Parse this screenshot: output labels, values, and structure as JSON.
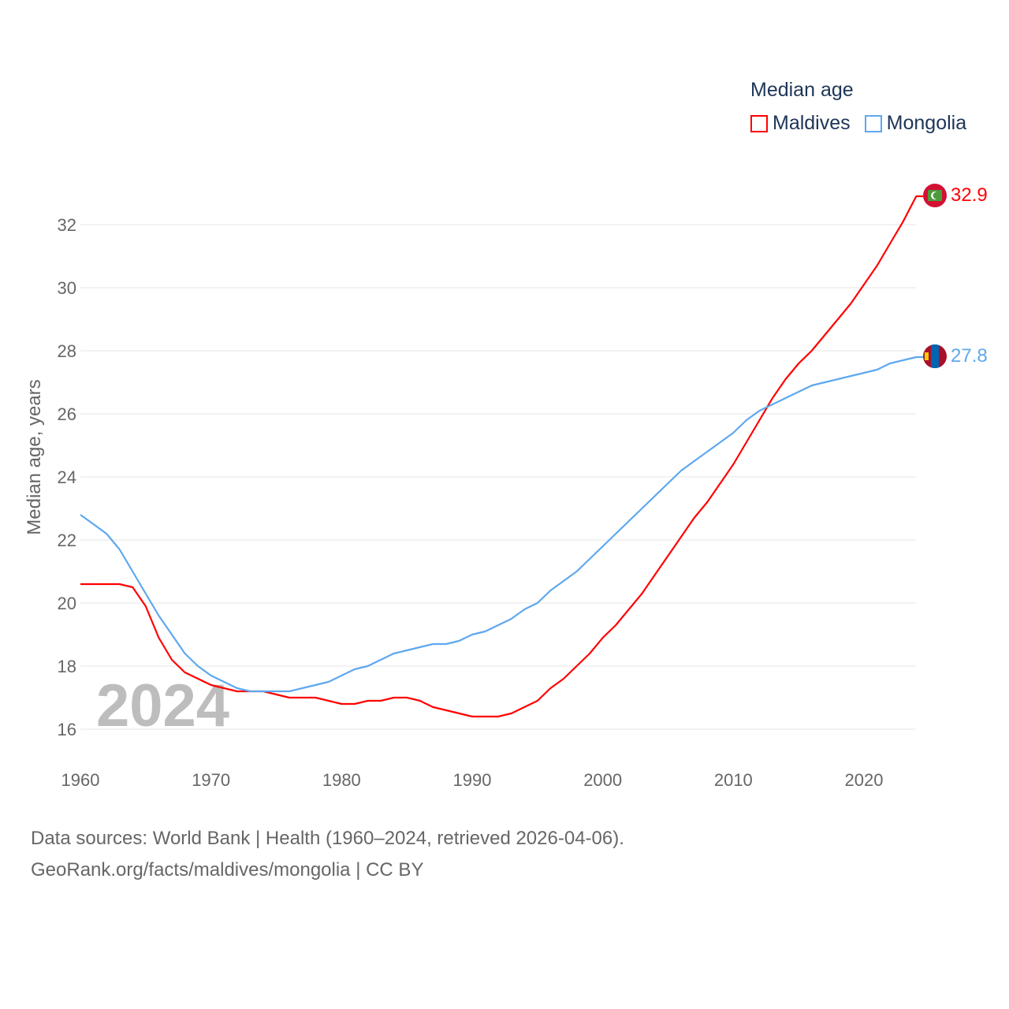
{
  "chart_data": {
    "type": "line",
    "title": "Median age",
    "ylabel": "Median age, years",
    "xlabel": "",
    "xlim": [
      1960,
      2024
    ],
    "ylim": [
      15,
      33.5
    ],
    "xticks": [
      1960,
      1970,
      1980,
      1990,
      2000,
      2010,
      2020
    ],
    "yticks": [
      16,
      18,
      20,
      22,
      24,
      26,
      28,
      30,
      32
    ],
    "grid": true,
    "legend_placement": "top-right",
    "year_watermark": "2024",
    "x": [
      1960,
      1961,
      1962,
      1963,
      1964,
      1965,
      1966,
      1967,
      1968,
      1969,
      1970,
      1971,
      1972,
      1973,
      1974,
      1975,
      1976,
      1977,
      1978,
      1979,
      1980,
      1981,
      1982,
      1983,
      1984,
      1985,
      1986,
      1987,
      1988,
      1989,
      1990,
      1991,
      1992,
      1993,
      1994,
      1995,
      1996,
      1997,
      1998,
      1999,
      2000,
      2001,
      2002,
      2003,
      2004,
      2005,
      2006,
      2007,
      2008,
      2009,
      2010,
      2011,
      2012,
      2013,
      2014,
      2015,
      2016,
      2017,
      2018,
      2019,
      2020,
      2021,
      2022,
      2023,
      2024
    ],
    "series": [
      {
        "name": "Maldives",
        "color": "#ff0000",
        "end_label": "32.9",
        "values": [
          20.6,
          20.6,
          20.6,
          20.6,
          20.5,
          19.9,
          18.9,
          18.2,
          17.8,
          17.6,
          17.4,
          17.3,
          17.2,
          17.2,
          17.2,
          17.1,
          17.0,
          17.0,
          17.0,
          16.9,
          16.8,
          16.8,
          16.9,
          16.9,
          17.0,
          17.0,
          16.9,
          16.7,
          16.6,
          16.5,
          16.4,
          16.4,
          16.4,
          16.5,
          16.7,
          16.9,
          17.3,
          17.6,
          18.0,
          18.4,
          18.9,
          19.3,
          19.8,
          20.3,
          20.9,
          21.5,
          22.1,
          22.7,
          23.2,
          23.8,
          24.4,
          25.1,
          25.8,
          26.5,
          27.1,
          27.6,
          28.0,
          28.5,
          29.0,
          29.5,
          30.1,
          30.7,
          31.4,
          32.1,
          32.9
        ]
      },
      {
        "name": "Mongolia",
        "color": "#5ea8ee",
        "end_label": "27.8",
        "values": [
          22.8,
          22.5,
          22.2,
          21.7,
          21.0,
          20.3,
          19.6,
          19.0,
          18.4,
          18.0,
          17.7,
          17.5,
          17.3,
          17.2,
          17.2,
          17.2,
          17.2,
          17.3,
          17.4,
          17.5,
          17.7,
          17.9,
          18.0,
          18.2,
          18.4,
          18.5,
          18.6,
          18.7,
          18.7,
          18.8,
          19.0,
          19.1,
          19.3,
          19.5,
          19.8,
          20.0,
          20.4,
          20.7,
          21.0,
          21.4,
          21.8,
          22.2,
          22.6,
          23.0,
          23.4,
          23.8,
          24.2,
          24.5,
          24.8,
          25.1,
          25.4,
          25.8,
          26.1,
          26.3,
          26.5,
          26.7,
          26.9,
          27.0,
          27.1,
          27.2,
          27.3,
          27.4,
          27.6,
          27.7,
          27.8
        ]
      }
    ]
  },
  "footer": {
    "line1": "Data sources: World Bank | Health (1960–2024, retrieved 2026-04-06).",
    "line2": "GeoRank.org/facts/maldives/mongolia | CC BY"
  }
}
